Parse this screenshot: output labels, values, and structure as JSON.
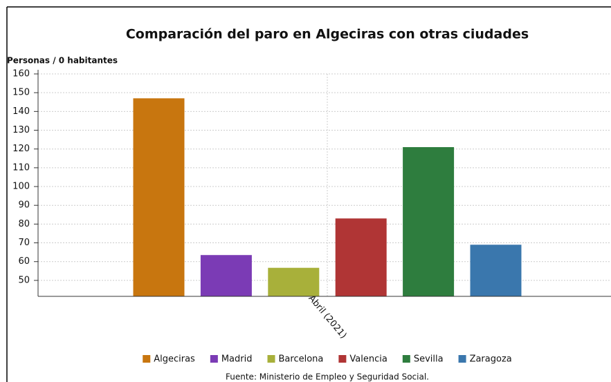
{
  "chart_data": {
    "type": "bar",
    "title": "Comparación del paro en Algeciras con otras ciudades",
    "y_label": "Personas / 0 habitantes",
    "source": "Fuente: Ministerio de Empleo y Seguridad Social.",
    "categories": [
      "Abril (2021)"
    ],
    "series": [
      {
        "name": "Algeciras",
        "color": "#c8760f",
        "values": [
          147
        ]
      },
      {
        "name": "Madrid",
        "color": "#7b3bb5",
        "values": [
          63.5
        ]
      },
      {
        "name": "Barcelona",
        "color": "#a8b03a",
        "values": [
          56.7
        ]
      },
      {
        "name": "Valencia",
        "color": "#b03535",
        "values": [
          83
        ]
      },
      {
        "name": "Sevilla",
        "color": "#2e7d3e",
        "values": [
          121
        ]
      },
      {
        "name": "Zaragoza",
        "color": "#3a77ad",
        "values": [
          69
        ]
      }
    ],
    "ylim": [
      41.5,
      160
    ],
    "yticks": [
      50,
      60,
      70,
      80,
      90,
      100,
      110,
      120,
      130,
      140,
      150,
      160
    ],
    "grid": true,
    "legend": "bottom"
  }
}
